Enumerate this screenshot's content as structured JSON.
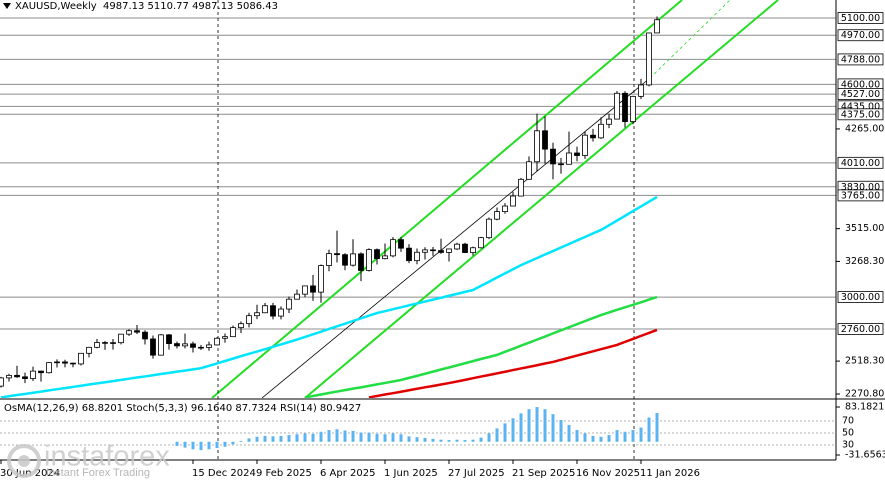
{
  "chart_data": [
    {
      "type": "candlestick",
      "title": "XAUUSD,Weekly  4987.13 5110.77 4987.13 5086.43",
      "categories": [
        "30 Jun 2024",
        null,
        null,
        null,
        null,
        null,
        null,
        null,
        null,
        null,
        null,
        null,
        null,
        null,
        null,
        null,
        null,
        null,
        null,
        null,
        null,
        null,
        null,
        null,
        "15 Dec 2024",
        null,
        null,
        null,
        null,
        null,
        null,
        null,
        "9 Feb 2025",
        null,
        null,
        null,
        null,
        null,
        null,
        null,
        "6 Apr 2025",
        null,
        null,
        null,
        null,
        null,
        null,
        null,
        "1 Jun 2025",
        null,
        null,
        null,
        null,
        null,
        null,
        null,
        "27 Jul 2025",
        null,
        null,
        null,
        null,
        null,
        null,
        null,
        "21 Sep 2025",
        null,
        null,
        null,
        null,
        null,
        null,
        null,
        "16 Nov 2025",
        null,
        null,
        null,
        null,
        null,
        null,
        null,
        "11 Jan 2026",
        null,
        null
      ],
      "open": [
        2330,
        2392,
        2411,
        2400,
        2387,
        2443,
        2431,
        2507,
        2512,
        2503,
        2497,
        2577,
        2622,
        2658,
        2653,
        2657,
        2721,
        2747,
        2736,
        2685,
        2563,
        2716,
        2650,
        2633,
        2648,
        2622,
        2621,
        2640,
        2690,
        2702,
        2770,
        2800,
        2860,
        2882,
        2935,
        2857,
        2910,
        2984,
        3022,
        3084,
        3037,
        3237,
        3327,
        3319,
        3240,
        3325,
        3200,
        3357,
        3289,
        3310,
        3432,
        3368,
        3274,
        3337,
        3355,
        3350,
        3336,
        3362,
        3398,
        3335,
        3371,
        3447,
        3586,
        3643,
        3685,
        3760,
        3886,
        4018,
        4251,
        4113,
        4002,
        3999,
        4084,
        4065,
        4218,
        4198,
        4300,
        4339,
        4533,
        4320,
        4510,
        4596,
        4987.13
      ],
      "high": [
        2400,
        2423,
        2483,
        2432,
        2477,
        2447,
        2509,
        2531,
        2528,
        2506,
        2579,
        2625,
        2685,
        2670,
        2685,
        2721,
        2758,
        2790,
        2750,
        2711,
        2721,
        2721,
        2666,
        2726,
        2665,
        2639,
        2665,
        2698,
        2726,
        2786,
        2817,
        2882,
        2942,
        2955,
        2956,
        2930,
        3004,
        3057,
        3086,
        3167,
        3245,
        3357,
        3500,
        3330,
        3435,
        3336,
        3366,
        3365,
        3403,
        3452,
        3451,
        3398,
        3365,
        3375,
        3377,
        3439,
        3363,
        3409,
        3409,
        3380,
        3453,
        3599,
        3674,
        3707,
        3791,
        3897,
        4059,
        4380,
        4359,
        4161,
        4046,
        4245,
        4132,
        4245,
        4265,
        4353,
        4380,
        4550,
        4549,
        4515,
        4642,
        4990,
        5110.77
      ],
      "low": [
        2320,
        2365,
        2393,
        2353,
        2369,
        2364,
        2425,
        2470,
        2471,
        2472,
        2485,
        2546,
        2615,
        2603,
        2605,
        2644,
        2708,
        2722,
        2643,
        2537,
        2563,
        2605,
        2613,
        2614,
        2583,
        2602,
        2596,
        2636,
        2656,
        2700,
        2730,
        2772,
        2834,
        2879,
        2832,
        2832,
        2880,
        2982,
        3000,
        2971,
        2957,
        3194,
        3260,
        3202,
        3230,
        3120,
        3192,
        3245,
        3284,
        3300,
        3340,
        3255,
        3247,
        3283,
        3310,
        3325,
        3268,
        3355,
        3331,
        3312,
        3366,
        3436,
        3578,
        3627,
        3682,
        3757,
        3884,
        3947,
        4004,
        3886,
        3929,
        3997,
        4022,
        4040,
        4170,
        4190,
        4271,
        4339,
        4275,
        4300,
        4490,
        4585,
        4987.13
      ],
      "close": [
        2392,
        2411,
        2400,
        2387,
        2443,
        2431,
        2507,
        2512,
        2503,
        2497,
        2577,
        2622,
        2658,
        2653,
        2657,
        2721,
        2747,
        2736,
        2685,
        2563,
        2716,
        2650,
        2633,
        2648,
        2622,
        2621,
        2640,
        2690,
        2702,
        2770,
        2800,
        2860,
        2882,
        2935,
        2857,
        2910,
        2984,
        3022,
        3084,
        3037,
        3237,
        3327,
        3319,
        3240,
        3325,
        3200,
        3357,
        3289,
        3310,
        3432,
        3368,
        3274,
        3337,
        3355,
        3350,
        3336,
        3362,
        3398,
        3335,
        3371,
        3447,
        3586,
        3643,
        3685,
        3760,
        3886,
        4018,
        4251,
        4113,
        4002,
        3999,
        4084,
        4065,
        4218,
        4198,
        4300,
        4339,
        4533,
        4320,
        4510,
        4596,
        4987,
        5086.43
      ],
      "up_color": "#ffffff",
      "down_color": "#000000",
      "lines": [
        {
          "color": "#00e5ff",
          "values": [
            2245,
            2254,
            2263,
            2271,
            2280,
            2289,
            2298,
            2307,
            2315,
            2324,
            2333,
            2342,
            2351,
            2359,
            2368,
            2377,
            2386,
            2395,
            2403,
            2412,
            2421,
            2430,
            2439,
            2447,
            2456,
            2465,
            2483,
            2501,
            2519,
            2537,
            2555,
            2573,
            2590,
            2608,
            2626,
            2644,
            2662,
            2680,
            2700,
            2720,
            2740,
            2760,
            2780,
            2800,
            2820,
            2840,
            2860,
            2880,
            2894,
            2909,
            2923,
            2938,
            2952,
            2966,
            2981,
            2995,
            3010,
            3024,
            3039,
            3053,
            3084,
            3115,
            3147,
            3178,
            3209,
            3240,
            3267,
            3293,
            3320,
            3346,
            3373,
            3399,
            3426,
            3452,
            3479,
            3505,
            3540,
            3576,
            3611,
            3647,
            3682,
            3718,
            3753
          ]
        },
        {
          "color": "#22dd44",
          "values": [
            null,
            null,
            null,
            null,
            null,
            null,
            null,
            null,
            null,
            null,
            null,
            null,
            null,
            null,
            null,
            null,
            null,
            null,
            null,
            null,
            null,
            null,
            null,
            null,
            null,
            null,
            null,
            null,
            null,
            null,
            null,
            null,
            null,
            null,
            null,
            null,
            null,
            null,
            2245,
            2256,
            2267,
            2278,
            2289,
            2300,
            2311,
            2321,
            2332,
            2343,
            2354,
            2365,
            2376,
            2392,
            2407,
            2423,
            2439,
            2455,
            2470,
            2486,
            2502,
            2518,
            2534,
            2549,
            2565,
            2588,
            2611,
            2634,
            2657,
            2680,
            2703,
            2727,
            2750,
            2773,
            2796,
            2819,
            2842,
            2865,
            2884,
            2904,
            2923,
            2942,
            2961,
            2981,
            3000
          ]
        },
        {
          "color": "#e00000",
          "values": [
            null,
            null,
            null,
            null,
            null,
            null,
            null,
            null,
            null,
            null,
            null,
            null,
            null,
            null,
            null,
            null,
            null,
            null,
            null,
            null,
            null,
            null,
            null,
            null,
            null,
            null,
            null,
            null,
            null,
            null,
            null,
            null,
            null,
            null,
            null,
            null,
            null,
            null,
            null,
            null,
            null,
            null,
            null,
            null,
            null,
            null,
            2245,
            2256,
            2267,
            2277,
            2288,
            2299,
            2310,
            2321,
            2331,
            2342,
            2353,
            2365,
            2377,
            2390,
            2402,
            2414,
            2426,
            2438,
            2451,
            2463,
            2475,
            2487,
            2500,
            2512,
            2528,
            2544,
            2560,
            2576,
            2592,
            2608,
            2624,
            2640,
            2663,
            2685,
            2708,
            2730,
            2753
          ]
        }
      ],
      "ylim": [
        2240.7,
        5235
      ],
      "yticks": [
        {
          "value": 4265,
          "label": "4265.00"
        },
        {
          "value": 3515,
          "label": "3515.00"
        },
        {
          "value": 3268.3,
          "label": "3268.30"
        },
        {
          "value": 2518.3,
          "label": "2518.30"
        },
        {
          "value": 2270.8,
          "label": "2270.80"
        }
      ],
      "levels": [
        {
          "value": 5100,
          "label": "5100.00"
        },
        {
          "value": 4970,
          "label": "4970.00"
        },
        {
          "value": 4788,
          "label": "4788.00"
        },
        {
          "value": 4600,
          "label": "4600.00"
        },
        {
          "value": 4527,
          "label": "4527.00"
        },
        {
          "value": 4435,
          "label": "4435.00"
        },
        {
          "value": 4375,
          "label": "4375.00"
        },
        {
          "value": 4010,
          "label": "4010.00"
        },
        {
          "value": 3830,
          "label": "3830.00"
        },
        {
          "value": 3765,
          "label": "3765.00"
        },
        {
          "value": 3000,
          "label": "3000.00"
        },
        {
          "value": 2760,
          "label": "2760.00"
        }
      ],
      "level_color": "#8c8c8c"
    },
    {
      "type": "bar",
      "title": "OsMA(12,26,9) 68.8201 Stoch(5,3,3) 96.1640 87.7324 RSI(14) 80.9427",
      "values": [
        null,
        null,
        null,
        null,
        null,
        null,
        null,
        null,
        null,
        null,
        null,
        null,
        null,
        null,
        null,
        null,
        null,
        null,
        null,
        null,
        null,
        null,
        -10,
        -14,
        -18,
        -20,
        -18,
        -15,
        -12,
        -6,
        2,
        8,
        12,
        14,
        13,
        14,
        16,
        18,
        20,
        19,
        24,
        28,
        30,
        27,
        26,
        22,
        22,
        19,
        18,
        20,
        18,
        13,
        11,
        9,
        7,
        5,
        4,
        5,
        4,
        5,
        10,
        20,
        32,
        44,
        56,
        68,
        78,
        83,
        78,
        66,
        52,
        40,
        28,
        20,
        14,
        12,
        16,
        28,
        24,
        28,
        34,
        58,
        68.8201
      ],
      "color": "#5ab4f0",
      "ylim": [
        -43.6,
        99.9
      ],
      "yticks": [
        83.1821,
        -31.6563
      ],
      "y2lim": [
        5,
        105
      ],
      "y2ticks": [
        70,
        50,
        30
      ]
    }
  ],
  "watermark": {
    "brand": "instaforex",
    "tagline": "Instant Forex Trading"
  }
}
